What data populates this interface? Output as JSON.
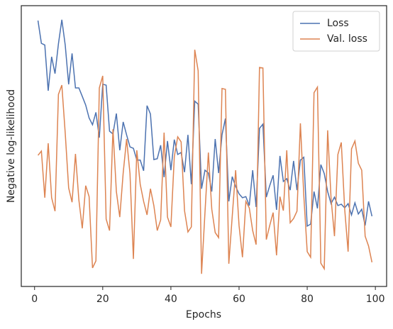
{
  "chart_data": {
    "type": "line",
    "x_label": "Epochs",
    "y_label": "Negative log-likelihood",
    "x": [
      1,
      2,
      3,
      4,
      5,
      6,
      7,
      8,
      9,
      10,
      11,
      12,
      13,
      14,
      15,
      16,
      17,
      18,
      19,
      20,
      21,
      22,
      23,
      24,
      25,
      26,
      27,
      28,
      29,
      30,
      31,
      32,
      33,
      34,
      35,
      36,
      37,
      38,
      39,
      40,
      41,
      42,
      43,
      44,
      45,
      46,
      47,
      48,
      49,
      50,
      51,
      52,
      53,
      54,
      55,
      56,
      57,
      58,
      59,
      60,
      61,
      62,
      63,
      64,
      65,
      66,
      67,
      68,
      69,
      70,
      71,
      72,
      73,
      74,
      75,
      76,
      77,
      78,
      79,
      80,
      81,
      82,
      83,
      84,
      85,
      86,
      87,
      88,
      89,
      90,
      91,
      92,
      93,
      94,
      95,
      96,
      97,
      98,
      99
    ],
    "series": [
      {
        "name": "Loss",
        "color": "#4c72b0",
        "values": [
          94.7,
          86.6,
          86,
          69.7,
          81.8,
          75.8,
          86.4,
          95,
          85.9,
          72,
          83,
          70.7,
          70.7,
          67.7,
          64.6,
          60,
          57.6,
          62,
          53,
          72,
          71.7,
          55.3,
          54.3,
          61.6,
          48.5,
          58.6,
          54,
          49.7,
          49.2,
          45,
          45,
          41.2,
          64.4,
          61.4,
          45.2,
          45.5,
          50.3,
          38.9,
          51.8,
          41.4,
          52.3,
          47,
          47.7,
          40.7,
          54,
          36.4,
          66,
          64.9,
          34.8,
          41.4,
          40.4,
          33.8,
          52.5,
          40.4,
          54,
          59.8,
          30.3,
          39.1,
          35.6,
          33,
          31.6,
          32,
          28.8,
          41.4,
          28.3,
          56.3,
          57.8,
          31.8,
          35.9,
          39.6,
          27.3,
          46.5,
          37.4,
          38.4,
          34.3,
          44.7,
          34.3,
          45,
          46,
          21.5,
          22.2,
          33.8,
          27.8,
          43.4,
          40.2,
          33.8,
          29.5,
          31.8,
          28.8,
          29.3,
          28,
          29.5,
          25.5,
          29.8,
          25.8,
          27.5,
          21.7,
          30.3,
          25
        ]
      },
      {
        "name": "Val. loss",
        "color": "#dd8452",
        "values": [
          46.7,
          48.2,
          31.6,
          51,
          31.6,
          26.8,
          68.4,
          71.7,
          54.5,
          35.1,
          30,
          47.2,
          30.8,
          20.7,
          35.9,
          32,
          6.6,
          9.1,
          70.7,
          75,
          24,
          19.9,
          56,
          33.8,
          24.7,
          40.4,
          52.5,
          40.2,
          9.8,
          48.5,
          36.4,
          30.3,
          25.5,
          34.8,
          28.8,
          19.9,
          23.7,
          54.8,
          24.7,
          21.2,
          46.2,
          53.3,
          51.5,
          27,
          19.4,
          21.2,
          84.3,
          76.8,
          4.5,
          26.3,
          47.7,
          27.5,
          19.2,
          17.4,
          70.5,
          70.2,
          8.1,
          25,
          41.4,
          21.7,
          10.4,
          30.3,
          28,
          19.9,
          14.9,
          78,
          77.8,
          16.7,
          21.7,
          26.3,
          11.1,
          32,
          27,
          48.5,
          22.7,
          24.2,
          26.8,
          58.1,
          32.3,
          12.4,
          10.4,
          69,
          71,
          8.3,
          6.3,
          55.6,
          31.3,
          17.9,
          47,
          51.3,
          27.5,
          12.4,
          49,
          51.8,
          43.9,
          41.4,
          17.9,
          14.4,
          8.6
        ]
      }
    ],
    "xlim": [
      -3.9,
      103.3
    ],
    "xticks": [
      0,
      20,
      40,
      60,
      80,
      100
    ],
    "ylim": [
      0,
      100
    ],
    "legend": "upper right"
  }
}
